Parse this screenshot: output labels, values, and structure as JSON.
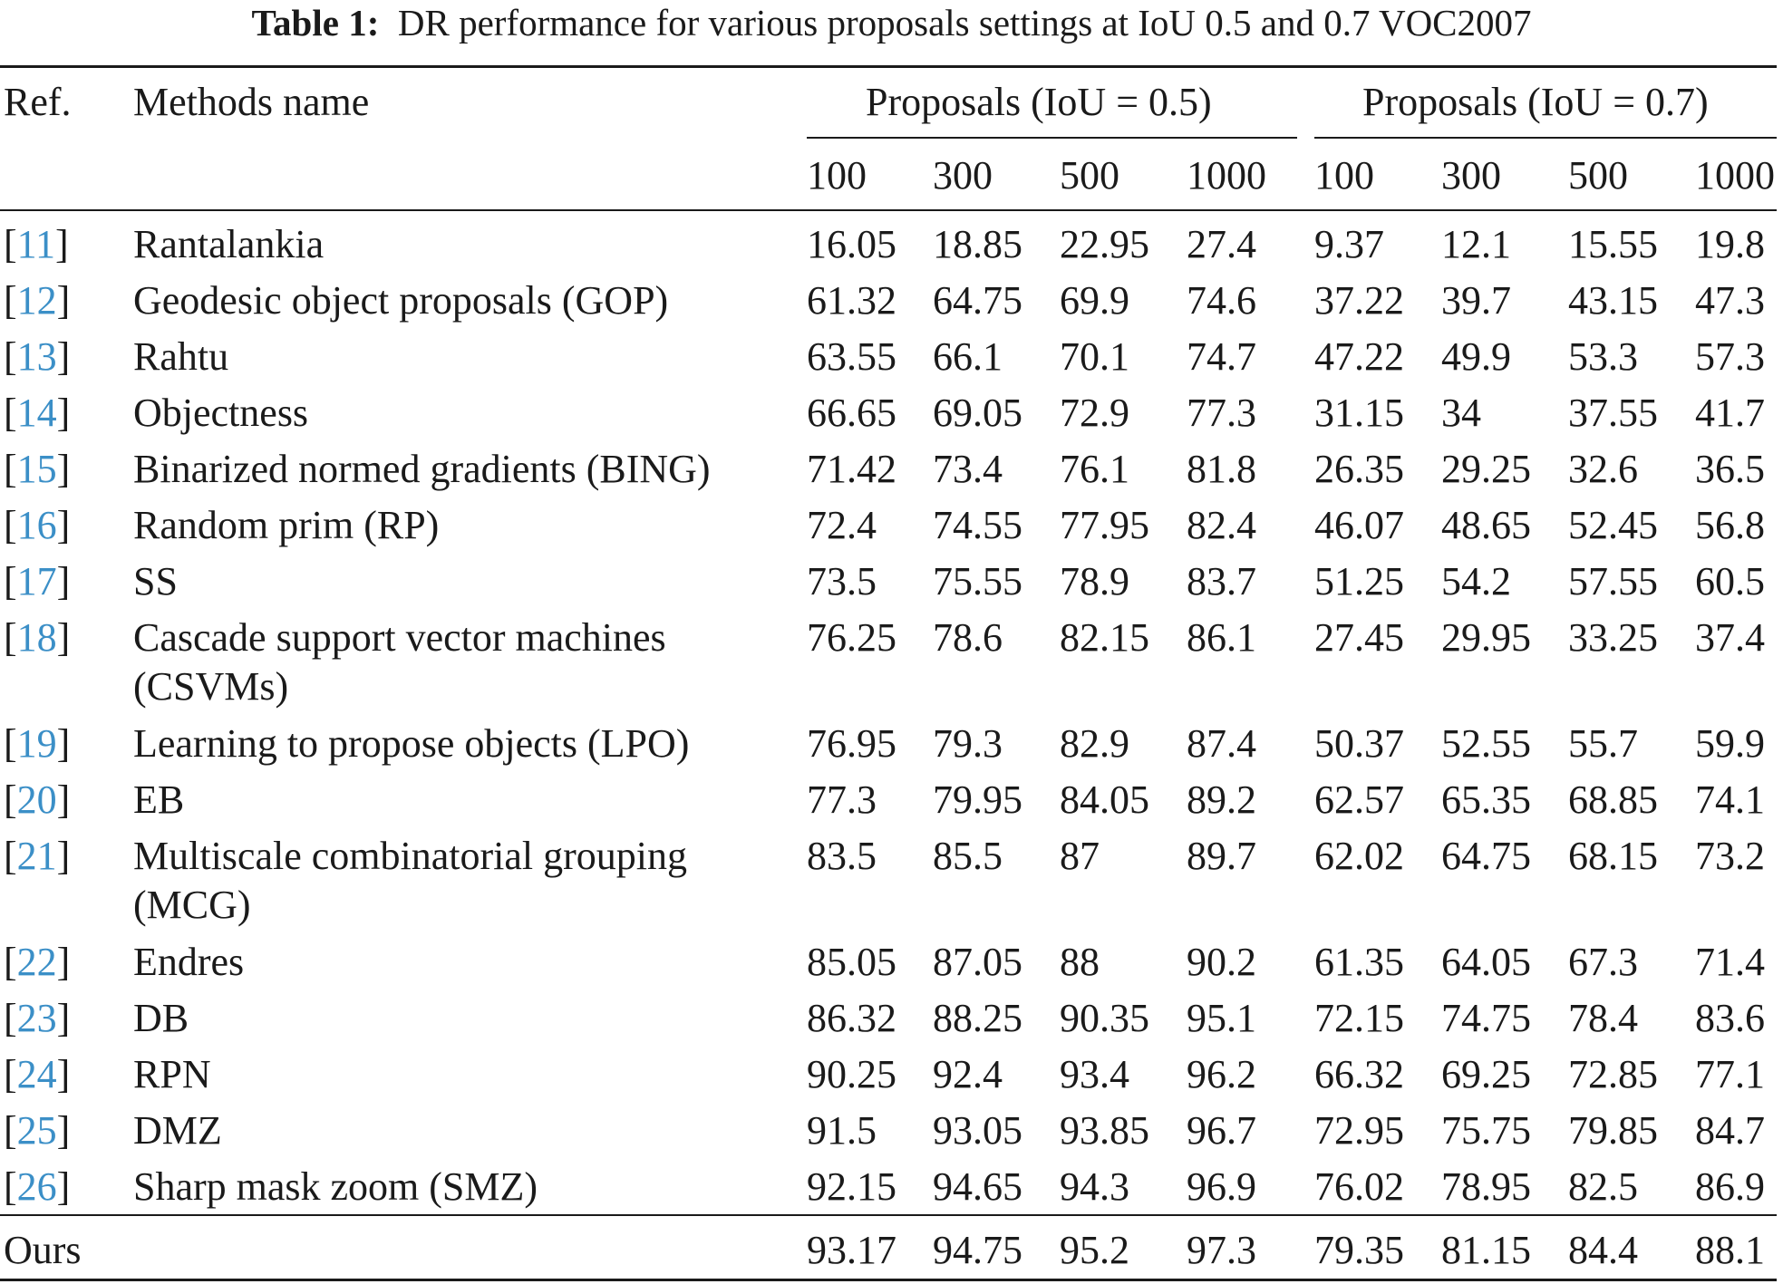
{
  "caption": {
    "label": "Table 1:",
    "text": "DR performance for various proposals settings at IoU 0.5 and 0.7 VOC2007"
  },
  "header": {
    "ref": "Ref.",
    "method": "Methods name",
    "group1": "Proposals (IoU = 0.5)",
    "group2": "Proposals (IoU = 0.7)",
    "counts": [
      "100",
      "300",
      "500",
      "1000",
      "100",
      "300",
      "500",
      "1000"
    ]
  },
  "rows": [
    {
      "ref_num": "11",
      "method": "Rantalankia",
      "values": [
        "16.05",
        "18.85",
        "22.95",
        "27.4",
        "9.37",
        "12.1",
        "15.55",
        "19.8"
      ]
    },
    {
      "ref_num": "12",
      "method": "Geodesic object proposals (GOP)",
      "values": [
        "61.32",
        "64.75",
        "69.9",
        "74.6",
        "37.22",
        "39.7",
        "43.15",
        "47.3"
      ]
    },
    {
      "ref_num": "13",
      "method": "Rahtu",
      "values": [
        "63.55",
        "66.1",
        "70.1",
        "74.7",
        "47.22",
        "49.9",
        "53.3",
        "57.3"
      ]
    },
    {
      "ref_num": "14",
      "method": "Objectness",
      "values": [
        "66.65",
        "69.05",
        "72.9",
        "77.3",
        "31.15",
        "34",
        "37.55",
        "41.7"
      ]
    },
    {
      "ref_num": "15",
      "method": "Binarized normed gradients (BING)",
      "values": [
        "71.42",
        "73.4",
        "76.1",
        "81.8",
        "26.35",
        "29.25",
        "32.6",
        "36.5"
      ]
    },
    {
      "ref_num": "16",
      "method": "Random prim (RP)",
      "values": [
        "72.4",
        "74.55",
        "77.95",
        "82.4",
        "46.07",
        "48.65",
        "52.45",
        "56.8"
      ]
    },
    {
      "ref_num": "17",
      "method": "SS",
      "values": [
        "73.5",
        "75.55",
        "78.9",
        "83.7",
        "51.25",
        "54.2",
        "57.55",
        "60.5"
      ]
    },
    {
      "ref_num": "18",
      "method": "Cascade support vector machines (CSVMs)",
      "values": [
        "76.25",
        "78.6",
        "82.15",
        "86.1",
        "27.45",
        "29.95",
        "33.25",
        "37.4"
      ]
    },
    {
      "ref_num": "19",
      "method": "Learning to propose objects (LPO)",
      "values": [
        "76.95",
        "79.3",
        "82.9",
        "87.4",
        "50.37",
        "52.55",
        "55.7",
        "59.9"
      ]
    },
    {
      "ref_num": "20",
      "method": "EB",
      "values": [
        "77.3",
        "79.95",
        "84.05",
        "89.2",
        "62.57",
        "65.35",
        "68.85",
        "74.1"
      ]
    },
    {
      "ref_num": "21",
      "method": "Multiscale combinatorial grouping (MCG)",
      "values": [
        "83.5",
        "85.5",
        "87",
        "89.7",
        "62.02",
        "64.75",
        "68.15",
        "73.2"
      ]
    },
    {
      "ref_num": "22",
      "method": "Endres",
      "values": [
        "85.05",
        "87.05",
        "88",
        "90.2",
        "61.35",
        "64.05",
        "67.3",
        "71.4"
      ]
    },
    {
      "ref_num": "23",
      "method": "DB",
      "values": [
        "86.32",
        "88.25",
        "90.35",
        "95.1",
        "72.15",
        "74.75",
        "78.4",
        "83.6"
      ]
    },
    {
      "ref_num": "24",
      "method": "RPN",
      "values": [
        "90.25",
        "92.4",
        "93.4",
        "96.2",
        "66.32",
        "69.25",
        "72.85",
        "77.1"
      ]
    },
    {
      "ref_num": "25",
      "method": "DMZ",
      "values": [
        "91.5",
        "93.05",
        "93.85",
        "96.7",
        "72.95",
        "75.75",
        "79.85",
        "84.7"
      ]
    },
    {
      "ref_num": "26",
      "method": "Sharp mask zoom (SMZ)",
      "values": [
        "92.15",
        "94.65",
        "94.3",
        "96.9",
        "76.02",
        "78.95",
        "82.5",
        "86.9"
      ]
    }
  ],
  "ours": {
    "label": "Ours",
    "values": [
      "93.17",
      "94.75",
      "95.2",
      "97.3",
      "79.35",
      "81.15",
      "84.4",
      "88.1"
    ]
  }
}
